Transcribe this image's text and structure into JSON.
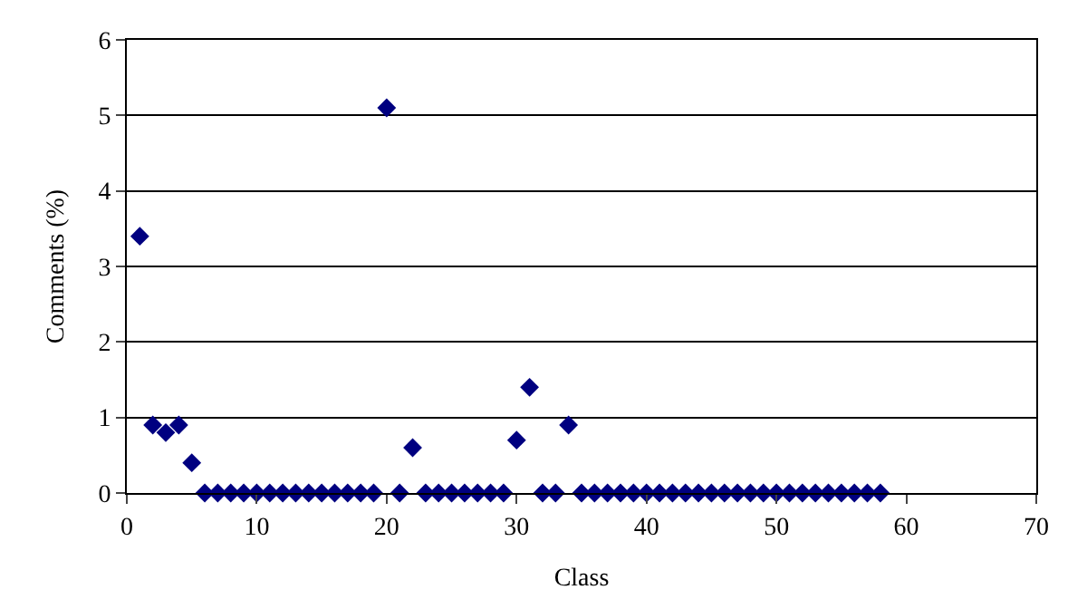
{
  "chart_data": {
    "type": "scatter",
    "xlabel": "Class",
    "ylabel": "Comments (%)",
    "x": [
      1,
      2,
      3,
      4,
      5,
      6,
      7,
      8,
      9,
      10,
      11,
      12,
      13,
      14,
      15,
      16,
      17,
      18,
      19,
      20,
      21,
      22,
      23,
      24,
      25,
      26,
      27,
      28,
      29,
      30,
      31,
      32,
      33,
      34,
      35,
      36,
      37,
      38,
      39,
      40,
      41,
      42,
      43,
      44,
      45,
      46,
      47,
      48,
      49,
      50,
      51,
      52,
      53,
      54,
      55,
      56,
      57,
      58
    ],
    "values": [
      3.4,
      0.9,
      0.8,
      0.9,
      0.4,
      0,
      0,
      0,
      0,
      0,
      0,
      0,
      0,
      0,
      0,
      0,
      0,
      0,
      0,
      5.1,
      0,
      0.6,
      0,
      0,
      0,
      0,
      0,
      0,
      0,
      0.7,
      1.4,
      0,
      0,
      0.9,
      0,
      0,
      0,
      0,
      0,
      0,
      0,
      0,
      0,
      0,
      0,
      0,
      0,
      0,
      0,
      0,
      0,
      0,
      0,
      0,
      0,
      0,
      0,
      0
    ],
    "color": "#000080",
    "marker": "diamond",
    "xlim": [
      0,
      70
    ],
    "xticks": [
      0,
      10,
      20,
      30,
      40,
      50,
      60,
      70
    ],
    "ylim": [
      0,
      6
    ],
    "yticks": [
      0,
      1,
      2,
      3,
      4,
      5,
      6
    ],
    "grid": "y"
  }
}
